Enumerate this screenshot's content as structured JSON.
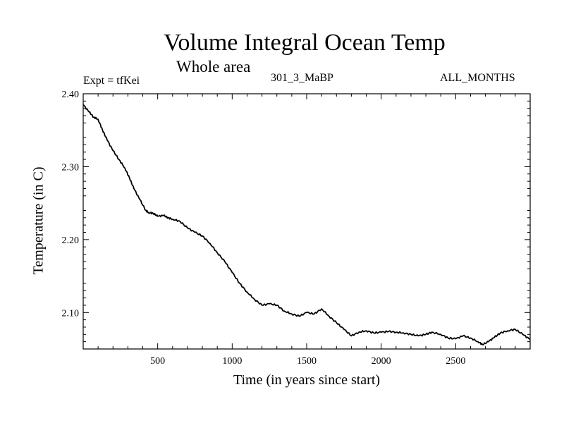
{
  "chart_data": {
    "type": "line",
    "title": "Volume Integral Ocean Temp",
    "subtitle": "Whole area",
    "labels": {
      "experiment": "Expt = tfKei",
      "case": "301_3_MaBP",
      "months": "ALL_MONTHS"
    },
    "xlabel": "Time (in years since start)",
    "ylabel": "Temperature (in C)",
    "xlim": [
      0,
      3000
    ],
    "ylim": [
      2.05,
      2.4
    ],
    "xticks": [
      500,
      1000,
      1500,
      2000,
      2500
    ],
    "xtick_labels": [
      "500",
      "1000",
      "1500",
      "2000",
      "2500"
    ],
    "yticks": [
      2.1,
      2.2,
      2.3,
      2.4
    ],
    "ytick_labels": [
      "2.10",
      "2.20",
      "2.30",
      "2.40"
    ],
    "grid": false,
    "series": [
      {
        "color": "#000000",
        "x": [
          0,
          40,
          70,
          100,
          130,
          160,
          200,
          240,
          280,
          310,
          340,
          380,
          420,
          440,
          470,
          500,
          540,
          570,
          600,
          650,
          700,
          750,
          800,
          850,
          900,
          950,
          1000,
          1050,
          1100,
          1150,
          1200,
          1250,
          1300,
          1350,
          1400,
          1450,
          1500,
          1550,
          1600,
          1650,
          1700,
          1750,
          1800,
          1850,
          1900,
          1950,
          2000,
          2050,
          2100,
          2150,
          2200,
          2250,
          2300,
          2340,
          2400,
          2450,
          2500,
          2550,
          2600,
          2650,
          2680,
          2720,
          2760,
          2800,
          2850,
          2900,
          2950,
          3000
        ],
        "y": [
          2.385,
          2.375,
          2.368,
          2.365,
          2.35,
          2.337,
          2.322,
          2.31,
          2.298,
          2.285,
          2.27,
          2.255,
          2.24,
          2.237,
          2.236,
          2.232,
          2.233,
          2.23,
          2.228,
          2.225,
          2.216,
          2.21,
          2.205,
          2.195,
          2.182,
          2.17,
          2.155,
          2.14,
          2.128,
          2.118,
          2.11,
          2.112,
          2.11,
          2.102,
          2.098,
          2.095,
          2.1,
          2.098,
          2.105,
          2.095,
          2.086,
          2.077,
          2.068,
          2.073,
          2.075,
          2.072,
          2.073,
          2.074,
          2.073,
          2.072,
          2.07,
          2.068,
          2.07,
          2.073,
          2.07,
          2.065,
          2.064,
          2.068,
          2.065,
          2.06,
          2.056,
          2.06,
          2.066,
          2.072,
          2.075,
          2.077,
          2.07,
          2.063
        ]
      }
    ]
  }
}
